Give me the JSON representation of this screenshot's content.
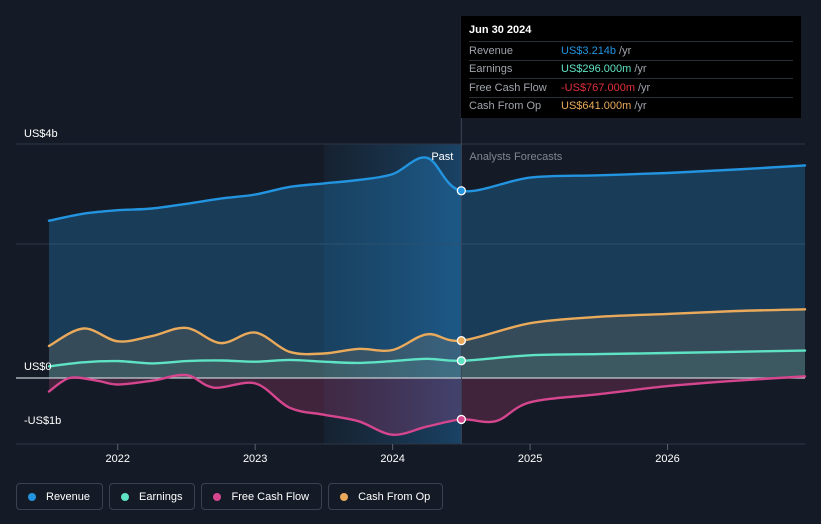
{
  "chart_data": {
    "type": "line",
    "title": "",
    "xlabel": "",
    "ylabel": "",
    "x_ticks": [
      "2022",
      "2023",
      "2024",
      "2025",
      "2026"
    ],
    "y_labels": [
      {
        "label": "US$4b",
        "value": 4.0
      },
      {
        "label": "US$0",
        "value": 0.0
      },
      {
        "label": "-US$1b",
        "value": -1.0
      }
    ],
    "xlim": [
      2021.5,
      2027.0
    ],
    "ylim": [
      -1.15,
      4.2
    ],
    "forecast_start": 2024.5,
    "shade_start": 2023.5,
    "region_labels": {
      "past": "Past",
      "forecast": "Analysts Forecasts"
    },
    "series": [
      {
        "name": "Revenue",
        "color": "#2394df",
        "x": [
          2021.5,
          2021.75,
          2022.0,
          2022.25,
          2022.5,
          2022.75,
          2023.0,
          2023.25,
          2023.5,
          2023.75,
          2024.0,
          2024.25,
          2024.5,
          2025.0,
          2025.5,
          2026.0,
          2026.5,
          2027.0
        ],
        "y": [
          2.7,
          2.82,
          2.88,
          2.91,
          2.99,
          3.08,
          3.15,
          3.28,
          3.34,
          3.4,
          3.5,
          3.78,
          3.214,
          3.44,
          3.48,
          3.52,
          3.58,
          3.65
        ]
      },
      {
        "name": "Earnings",
        "color": "#5fe3c5",
        "x": [
          2021.5,
          2021.75,
          2022.0,
          2022.25,
          2022.5,
          2022.75,
          2023.0,
          2023.25,
          2023.5,
          2023.75,
          2024.0,
          2024.25,
          2024.5,
          2025.0,
          2025.5,
          2026.0,
          2026.5,
          2027.0
        ],
        "y": [
          0.2,
          0.27,
          0.29,
          0.25,
          0.29,
          0.3,
          0.28,
          0.31,
          0.28,
          0.26,
          0.29,
          0.33,
          0.296,
          0.39,
          0.41,
          0.43,
          0.45,
          0.47
        ]
      },
      {
        "name": "Free Cash Flow",
        "color": "#d5468e",
        "x": [
          2021.5,
          2021.65,
          2021.85,
          2022.0,
          2022.25,
          2022.5,
          2022.7,
          2023.0,
          2023.25,
          2023.5,
          2023.75,
          2024.0,
          2024.25,
          2024.5,
          2024.75,
          2025.0,
          2025.5,
          2026.0,
          2026.5,
          2027.0
        ],
        "y": [
          -0.25,
          0.0,
          -0.05,
          -0.12,
          -0.05,
          0.05,
          -0.18,
          -0.1,
          -0.55,
          -0.68,
          -0.8,
          -1.05,
          -0.9,
          -0.767,
          -0.8,
          -0.45,
          -0.3,
          -0.15,
          -0.05,
          0.03
        ]
      },
      {
        "name": "Cash From Op",
        "color": "#eaaa5b",
        "x": [
          2021.5,
          2021.75,
          2022.0,
          2022.25,
          2022.5,
          2022.75,
          2023.0,
          2023.25,
          2023.5,
          2023.75,
          2024.0,
          2024.25,
          2024.5,
          2025.0,
          2025.5,
          2026.0,
          2026.5,
          2027.0
        ],
        "y": [
          0.55,
          0.85,
          0.63,
          0.72,
          0.86,
          0.6,
          0.78,
          0.45,
          0.42,
          0.5,
          0.48,
          0.75,
          0.641,
          0.94,
          1.05,
          1.1,
          1.15,
          1.18
        ]
      }
    ],
    "tooltip": {
      "date": "Jun 30 2024",
      "rows": [
        {
          "name": "Revenue",
          "value": "US$3.214b",
          "unit": "/yr",
          "color": "#2394df"
        },
        {
          "name": "Earnings",
          "value": "US$296.000m",
          "unit": "/yr",
          "color": "#5fe3c5"
        },
        {
          "name": "Free Cash Flow",
          "value": "-US$767.000m",
          "unit": "/yr",
          "color": "#e0313b"
        },
        {
          "name": "Cash From Op",
          "value": "US$641.000m",
          "unit": "/yr",
          "color": "#eaaa5b"
        }
      ]
    },
    "legend": [
      {
        "name": "Revenue",
        "color": "#2394df"
      },
      {
        "name": "Earnings",
        "color": "#5fe3c5"
      },
      {
        "name": "Free Cash Flow",
        "color": "#d5468e"
      },
      {
        "name": "Cash From Op",
        "color": "#eaaa5b"
      }
    ]
  }
}
